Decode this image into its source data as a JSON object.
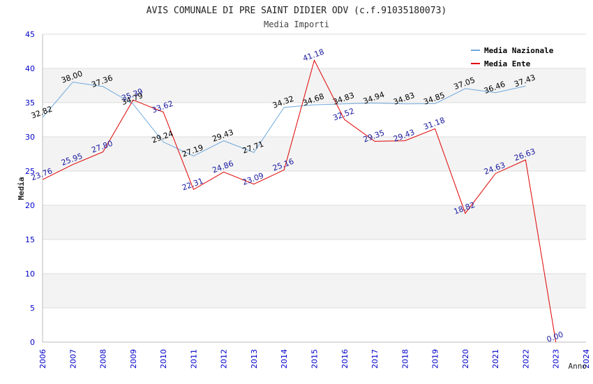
{
  "chart_data": {
    "type": "line",
    "title": "AVIS COMUNALE DI PRE SAINT DIDIER ODV (c.f.91035180073)",
    "subtitle": "Media Importi",
    "xlabel": "Anno",
    "ylabel": "Media",
    "ylim": [
      0,
      45
    ],
    "yticks": [
      0,
      5,
      10,
      15,
      20,
      25,
      30,
      35,
      40,
      45
    ],
    "grid": true,
    "legend_position": "top-right",
    "categories": [
      "2006",
      "2007",
      "2008",
      "2009",
      "2010",
      "2011",
      "2012",
      "2013",
      "2014",
      "2015",
      "2016",
      "2017",
      "2018",
      "2019",
      "2020",
      "2021",
      "2022",
      "2023",
      "2024"
    ],
    "series": [
      {
        "name": "Media Nazionale",
        "color": "#6fa8dc",
        "label_color": "#000000",
        "values": [
          32.82,
          38.0,
          37.36,
          34.79,
          29.24,
          27.19,
          29.43,
          27.71,
          34.32,
          34.68,
          34.83,
          34.94,
          34.83,
          34.85,
          37.05,
          36.46,
          37.43,
          null,
          null
        ],
        "labels": [
          "32.82",
          "38.00",
          "37.36",
          "34.79",
          "29.24",
          "27.19",
          "29.43",
          "27.71",
          "34.32",
          "34.68",
          "34.83",
          "34.94",
          "34.83",
          "34.85",
          "37.05",
          "36.46",
          "37.43",
          "",
          ""
        ]
      },
      {
        "name": "Media Ente",
        "color": "#e00000",
        "label_color": "#1a1aa0",
        "values": [
          23.76,
          25.95,
          27.8,
          35.39,
          33.62,
          22.31,
          24.86,
          23.09,
          25.16,
          41.18,
          32.52,
          29.35,
          29.43,
          31.18,
          18.82,
          24.63,
          26.63,
          0.0,
          null
        ],
        "labels": [
          "23.76",
          "25.95",
          "27.80",
          "35.39",
          "33.62",
          "22.31",
          "24.86",
          "23.09",
          "25.16",
          "41.18",
          "32.52",
          "29.35",
          "29.43",
          "31.18",
          "18.82",
          "24.63",
          "26.63",
          "0.00",
          ""
        ]
      }
    ]
  },
  "colors": {
    "axis_tick_text": "#0000cc",
    "band": "#f3f3f3",
    "gridline": "#dddddd",
    "axis": "#bbbbbb"
  }
}
